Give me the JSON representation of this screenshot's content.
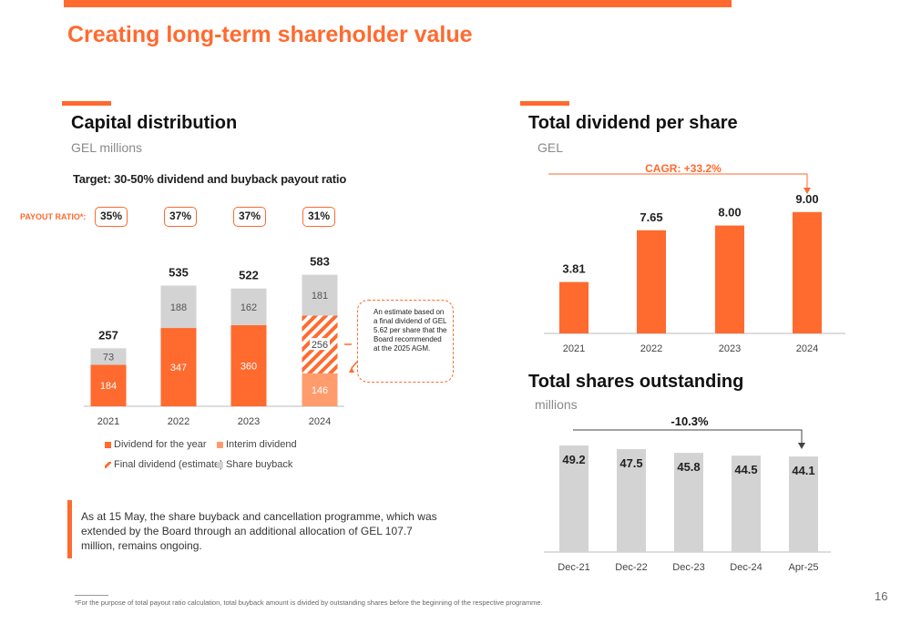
{
  "page": {
    "title": "Creating long-term shareholder value",
    "page_number": "16",
    "footnote": "*For the purpose of total payout ratio calculation, total buyback amount is divided by outstanding shares before the beginning of the respective programme.",
    "callout": "As at 15 May, the share buyback and cancellation programme, which was extended by the Board through an additional allocation of GEL 107.7 million, remains ongoing.",
    "colors": {
      "accent": "#ff6a2f",
      "grey": "#d3d3d3",
      "light_orange": "#ff9c6e"
    }
  },
  "capital": {
    "title": "Capital distribution",
    "subtitle": "GEL millions",
    "target": "Target: 30-50% dividend and buyback payout ratio",
    "payout_label": "PAYOUT RATIO*:",
    "payout_ratios": [
      "35%",
      "37%",
      "37%",
      "31%"
    ],
    "note": "An estimate based on a final dividend of GEL 5.62 per share that the Board recommended at the 2025 AGM.",
    "legend": [
      "Dividend for the year",
      "Interim dividend",
      "Final dividend (estimate)",
      "Share buyback"
    ]
  },
  "dividend": {
    "title": "Total dividend per share",
    "subtitle": "GEL",
    "annotation": "CAGR: +33.2%"
  },
  "shares": {
    "title": "Total shares outstanding",
    "subtitle": "millions",
    "annotation": "-10.3%"
  },
  "chart_data": [
    {
      "type": "bar",
      "stacked": true,
      "categories": [
        "2021",
        "2022",
        "2023",
        "2024"
      ],
      "series": [
        {
          "name": "Dividend for the year",
          "values": [
            184,
            347,
            360,
            null
          ],
          "color": "#ff6a2f"
        },
        {
          "name": "Interim dividend",
          "values": [
            null,
            null,
            null,
            146
          ],
          "color": "#ff9c6e"
        },
        {
          "name": "Final dividend (estimate)",
          "values": [
            null,
            null,
            null,
            256
          ],
          "color": "#ff6a2f"
        },
        {
          "name": "Share buyback",
          "values": [
            73,
            188,
            162,
            181
          ],
          "color": "#d3d3d3"
        }
      ],
      "totals": [
        257,
        535,
        522,
        583
      ],
      "ylim": [
        0,
        650
      ]
    },
    {
      "type": "bar",
      "categories": [
        "2021",
        "2022",
        "2023",
        "2024"
      ],
      "values": [
        3.81,
        7.65,
        8.0,
        9.0
      ],
      "value_labels": [
        "3.81",
        "7.65",
        "8.00",
        "9.00"
      ],
      "color": "#ff6a2f",
      "ylim": [
        0,
        10.2
      ]
    },
    {
      "type": "bar",
      "categories": [
        "Dec-21",
        "Dec-22",
        "Dec-23",
        "Dec-24",
        "Apr-25"
      ],
      "values": [
        49.2,
        47.5,
        45.8,
        44.5,
        44.1
      ],
      "value_labels": [
        "49.2",
        "47.5",
        "45.8",
        "44.5",
        "44.1"
      ],
      "color": "#d3d3d3",
      "ylim": [
        0,
        53
      ]
    }
  ]
}
